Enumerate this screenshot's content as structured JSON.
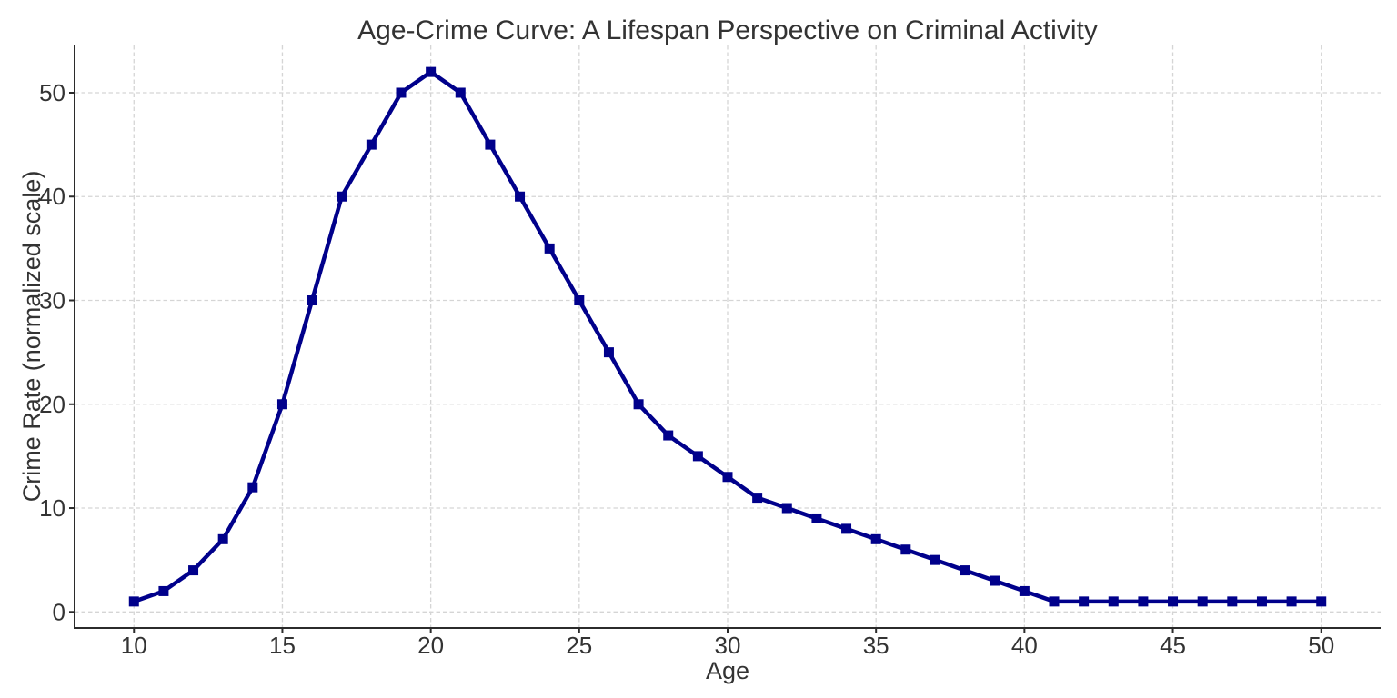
{
  "chart_data": {
    "type": "line",
    "title": "Age-Crime Curve: A Lifespan Perspective on Criminal Activity",
    "xlabel": "Age",
    "ylabel": "Crime Rate (normalized scale)",
    "x": [
      10,
      11,
      12,
      13,
      14,
      15,
      16,
      17,
      18,
      19,
      20,
      21,
      22,
      23,
      24,
      25,
      26,
      27,
      28,
      29,
      30,
      31,
      32,
      33,
      34,
      35,
      36,
      37,
      38,
      39,
      40,
      41,
      42,
      43,
      44,
      45,
      46,
      47,
      48,
      49,
      50
    ],
    "values": [
      1,
      2,
      4,
      7,
      12,
      20,
      30,
      40,
      45,
      50,
      52,
      50,
      45,
      40,
      35,
      30,
      25,
      20,
      17,
      15,
      13,
      11,
      10,
      9,
      8,
      7,
      6,
      5,
      4,
      3,
      2,
      1,
      1,
      1,
      1,
      1,
      1,
      1,
      1,
      1,
      1
    ],
    "xlim": [
      8,
      52
    ],
    "ylim": [
      -1.55,
      54.55
    ],
    "x_ticks": [
      10,
      15,
      20,
      25,
      30,
      35,
      40,
      45,
      50
    ],
    "y_ticks": [
      0,
      10,
      20,
      30,
      40,
      50
    ],
    "grid": true,
    "grid_style": "dashed",
    "legend_position": "none",
    "line_color": "#00008B",
    "marker": "square",
    "marker_size": 11,
    "line_width": 4.5,
    "grid_color": "#d5d5d5",
    "axis_color": "#2b2b2b",
    "text_color": "#333333",
    "background": "#ffffff"
  }
}
